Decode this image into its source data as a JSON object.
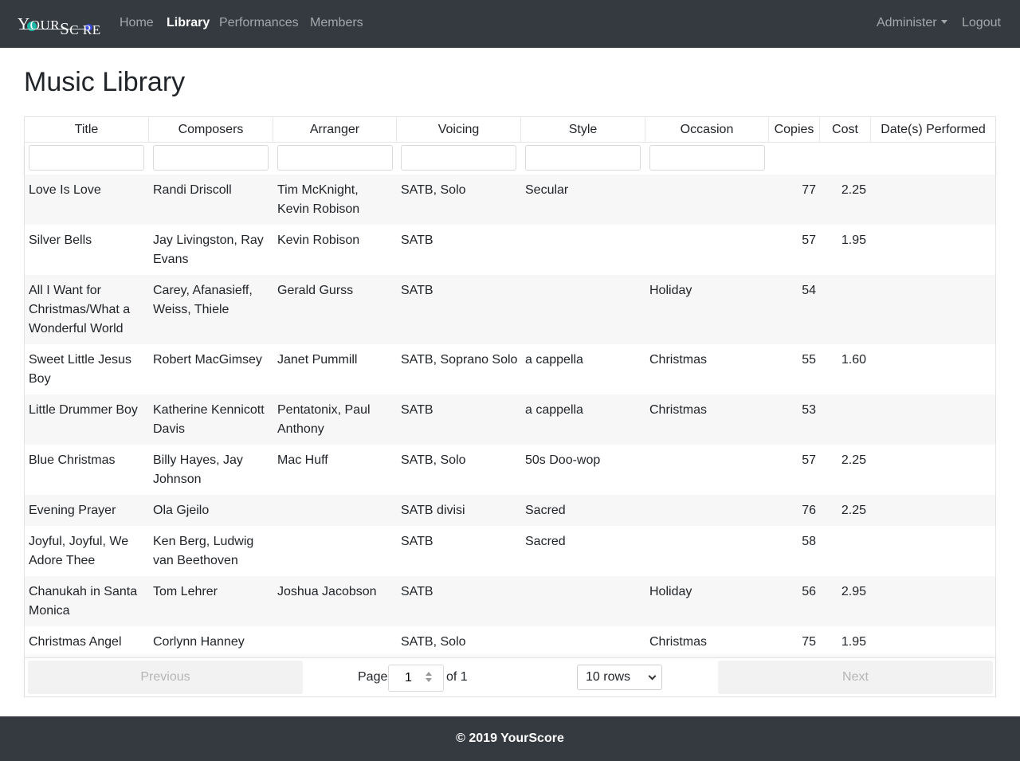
{
  "brand": {
    "text_part1": "Y",
    "text_part2": "OUR",
    "text_part3": "S",
    "text_part4": "C",
    "text_part5": "RE"
  },
  "nav": {
    "home": "Home",
    "library": "Library",
    "performances": "Performances",
    "members": "Members",
    "administer": "Administer",
    "logout": "Logout"
  },
  "page_title": "Music Library",
  "table": {
    "columns": [
      "Title",
      "Composers",
      "Arranger",
      "Voicing",
      "Style",
      "Occasion",
      "Copies",
      "Cost",
      "Date(s) Performed"
    ],
    "rows": [
      {
        "title": "Love Is Love",
        "composers": "Randi Driscoll",
        "arranger": "Tim McKnight, Kevin Robison",
        "voicing": "SATB, Solo",
        "style": "Secular",
        "occasion": "",
        "copies": "77",
        "cost": "2.25",
        "dates": ""
      },
      {
        "title": "Silver Bells",
        "composers": "Jay Livingston, Ray Evans",
        "arranger": "Kevin Robison",
        "voicing": "SATB",
        "style": "",
        "occasion": "",
        "copies": "57",
        "cost": "1.95",
        "dates": ""
      },
      {
        "title": "All I Want for Christmas/What a Wonderful World",
        "composers": "Carey, Afanasieff, Weiss, Thiele",
        "arranger": "Gerald Gurss",
        "voicing": "SATB",
        "style": "",
        "occasion": "Holiday",
        "copies": "54",
        "cost": "",
        "dates": ""
      },
      {
        "title": "Sweet Little Jesus Boy",
        "composers": "Robert MacGimsey",
        "arranger": "Janet Pummill",
        "voicing": "SATB, Soprano Solo",
        "style": "a cappella",
        "occasion": "Christmas",
        "copies": "55",
        "cost": "1.60",
        "dates": ""
      },
      {
        "title": "Little Drummer Boy",
        "composers": "Katherine Kennicott Davis",
        "arranger": "Pentatonix, Paul Anthony",
        "voicing": "SATB",
        "style": "a cappella",
        "occasion": "Christmas",
        "copies": "53",
        "cost": "",
        "dates": ""
      },
      {
        "title": "Blue Christmas",
        "composers": "Billy Hayes, Jay Johnson",
        "arranger": "Mac Huff",
        "voicing": "SATB, Solo",
        "style": "50s Doo-wop",
        "occasion": "",
        "copies": "57",
        "cost": "2.25",
        "dates": ""
      },
      {
        "title": "Evening Prayer",
        "composers": "Ola Gjeilo",
        "arranger": "",
        "voicing": "SATB divisi",
        "style": "Sacred",
        "occasion": "",
        "copies": "76",
        "cost": "2.25",
        "dates": ""
      },
      {
        "title": "Joyful, Joyful, We Adore Thee",
        "composers": "Ken Berg, Ludwig van Beethoven",
        "arranger": "",
        "voicing": "SATB",
        "style": "Sacred",
        "occasion": "",
        "copies": "58",
        "cost": "",
        "dates": ""
      },
      {
        "title": "Chanukah in Santa Monica",
        "composers": "Tom Lehrer",
        "arranger": "Joshua Jacobson",
        "voicing": "SATB",
        "style": "",
        "occasion": "Holiday",
        "copies": "56",
        "cost": "2.95",
        "dates": ""
      },
      {
        "title": "Christmas Angel",
        "composers": "Corlynn Hanney",
        "arranger": "",
        "voicing": "SATB, Solo",
        "style": "",
        "occasion": "Christmas",
        "copies": "75",
        "cost": "1.95",
        "dates": ""
      }
    ]
  },
  "pagination": {
    "previous": "Previous",
    "next": "Next",
    "page_label": "Page",
    "page_value": "1",
    "of_label": "of 1",
    "rows_selected": "10 rows"
  },
  "footer": {
    "text": "© 2019 YourScore"
  }
}
